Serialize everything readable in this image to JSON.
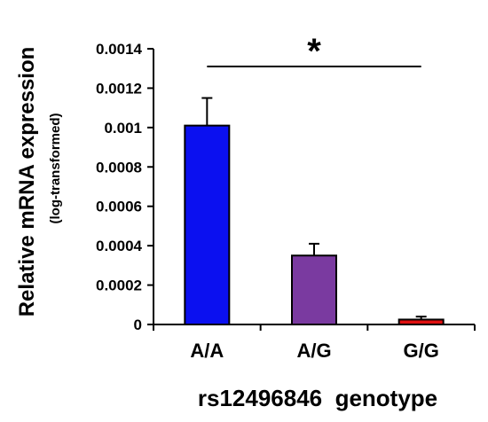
{
  "chart_data": {
    "type": "bar",
    "categories": [
      "A/A",
      "A/G",
      "G/G"
    ],
    "values": [
      0.00101,
      0.00035,
      2.5e-05
    ],
    "error_upper": [
      0.00115,
      0.00041,
      4e-05
    ],
    "bar_colors": [
      "#0b10f0",
      "#7a3aa0",
      "#e01010"
    ],
    "ylim": [
      0,
      0.0014
    ],
    "yticks": [
      0,
      0.0002,
      0.0004,
      0.0006,
      0.0008,
      0.001,
      0.0012,
      0.0014
    ],
    "ytick_labels": [
      "0",
      "0.0002",
      "0.0004",
      "0.0006",
      "0.0008",
      "0.001",
      "0.0012",
      "0.0014"
    ],
    "xlabel": "rs12496846  genotype",
    "ylabel": "Relative mRNA expression",
    "ylabel_sub": "(log-transformed)",
    "significance": {
      "label": "*",
      "from": "A/A",
      "to": "G/G",
      "y": 0.00131
    },
    "grid": false,
    "legend": "none"
  }
}
